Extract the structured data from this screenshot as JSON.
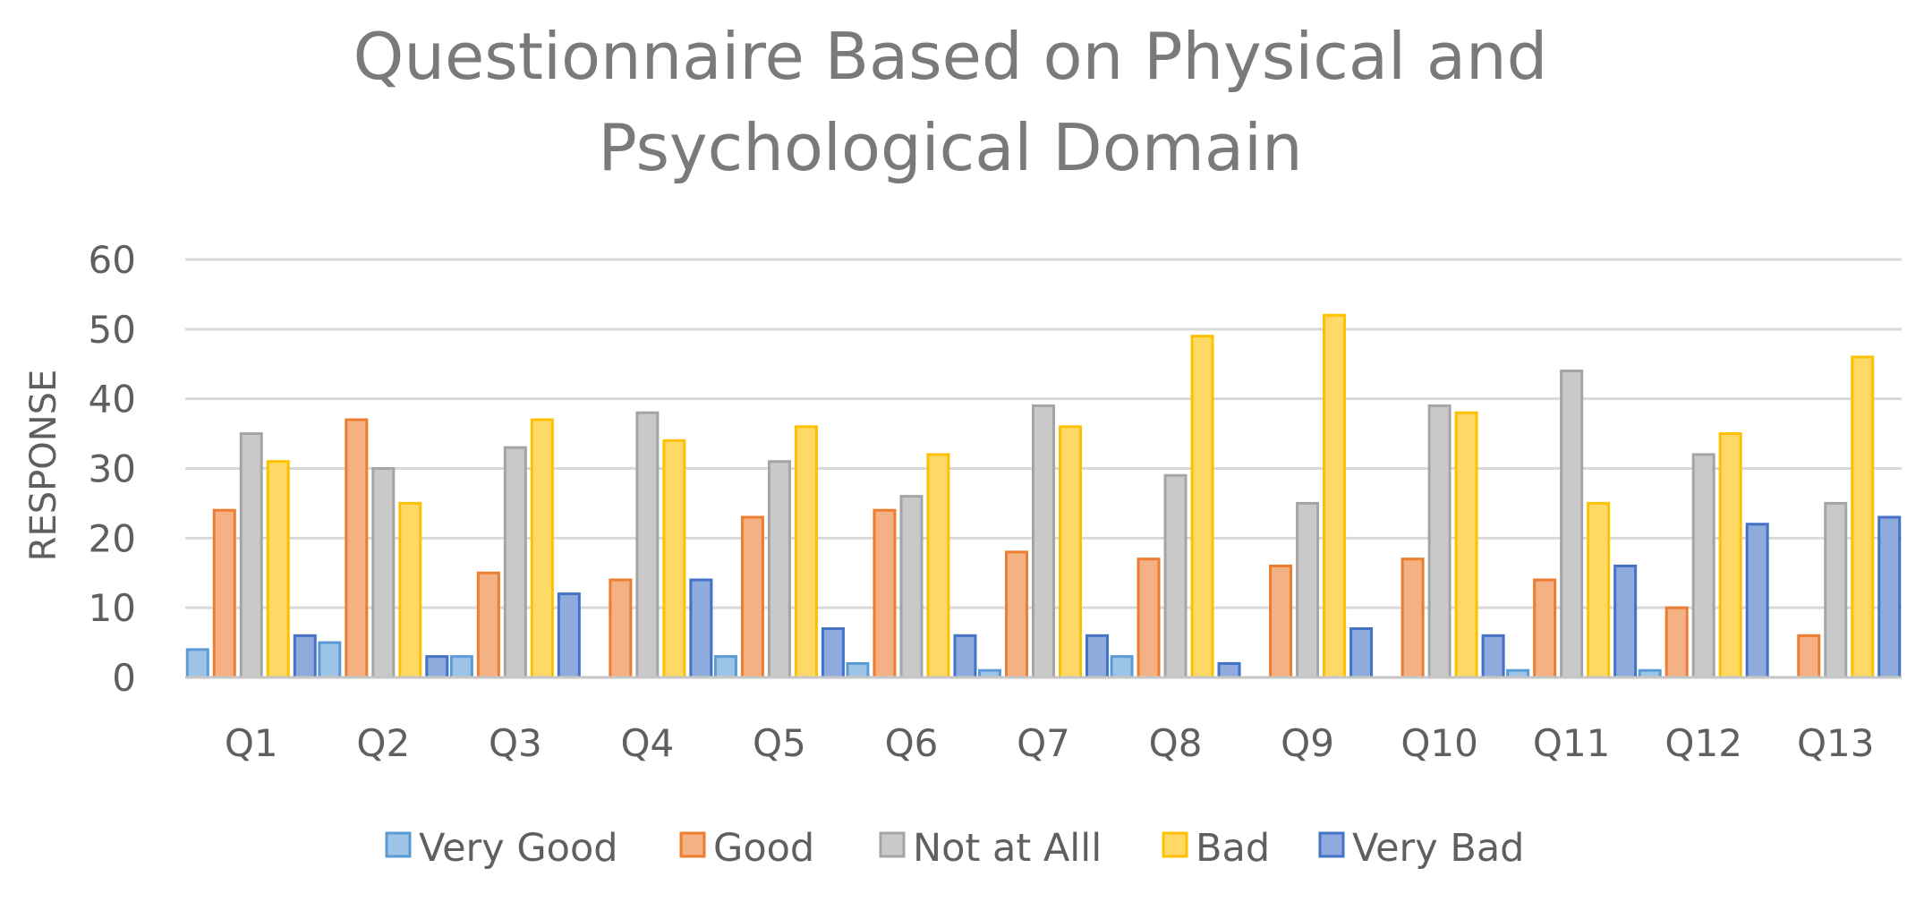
{
  "chart_data": {
    "type": "bar",
    "title_lines": [
      "Questionnaire Based on Physical and",
      "Psychological Domain"
    ],
    "xlabel": "",
    "ylabel": "RESPONSE",
    "ylim": [
      0,
      60
    ],
    "yticks": [
      0,
      10,
      20,
      30,
      40,
      50,
      60
    ],
    "grid": true,
    "legend_position": "bottom",
    "categories": [
      "Q1",
      "Q2",
      "Q3",
      "Q4",
      "Q5",
      "Q6",
      "Q7",
      "Q8",
      "Q9",
      "Q10",
      "Q11",
      "Q12",
      "Q13"
    ],
    "series": [
      {
        "name": "Very Good",
        "fill": "#9dc3e6",
        "stroke": "#5b9bd5",
        "values": [
          4,
          5,
          3,
          0,
          3,
          2,
          1,
          3,
          0,
          0,
          1,
          1,
          0
        ]
      },
      {
        "name": "Good",
        "fill": "#f4b183",
        "stroke": "#ed7d31",
        "values": [
          24,
          37,
          15,
          14,
          23,
          24,
          18,
          17,
          16,
          17,
          14,
          10,
          6
        ]
      },
      {
        "name": "Not at Alll",
        "fill": "#c9c9c9",
        "stroke": "#a5a5a5",
        "values": [
          35,
          30,
          33,
          38,
          31,
          26,
          39,
          29,
          25,
          39,
          44,
          32,
          25
        ]
      },
      {
        "name": "Bad",
        "fill": "#ffd966",
        "stroke": "#ffc000",
        "values": [
          31,
          25,
          37,
          34,
          36,
          32,
          36,
          49,
          52,
          38,
          25,
          35,
          46
        ]
      },
      {
        "name": "Very Bad",
        "fill": "#8faadc",
        "stroke": "#4472c4",
        "values": [
          6,
          3,
          12,
          14,
          7,
          6,
          6,
          2,
          7,
          6,
          16,
          22,
          23
        ]
      }
    ]
  }
}
